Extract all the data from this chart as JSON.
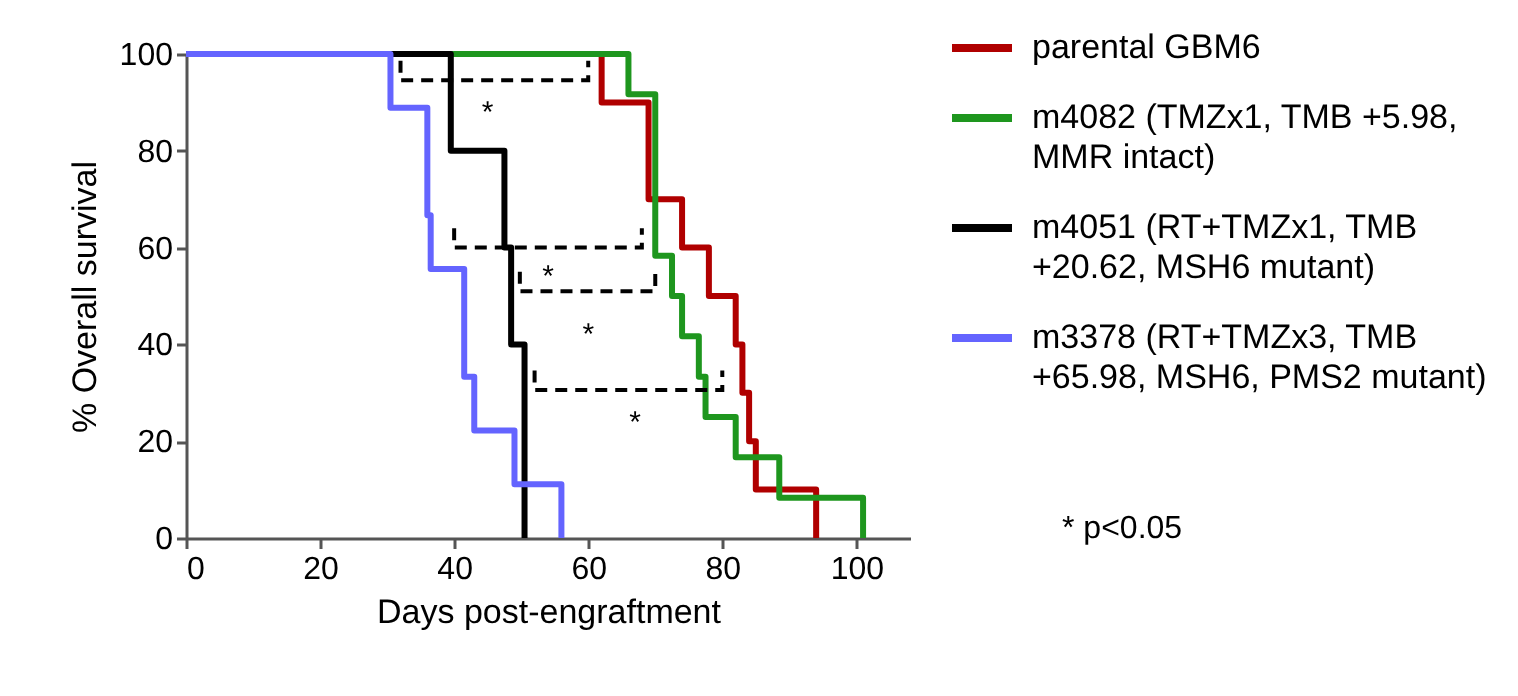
{
  "chart_data": {
    "type": "step",
    "xlabel": "Days post-engraftment",
    "ylabel": "% Overall survival",
    "xlim": [
      0,
      108
    ],
    "xticks": [
      0,
      20,
      40,
      60,
      80,
      100
    ],
    "ylim": [
      0,
      100
    ],
    "yticks": [
      0,
      20,
      40,
      60,
      80,
      100
    ],
    "legend": "right",
    "series": [
      {
        "name": "parental GBM6",
        "color": "#b00000",
        "x": [
          0,
          62,
          69,
          74,
          78,
          82,
          83,
          84,
          85,
          94
        ],
        "values": [
          100,
          90,
          70,
          60,
          50,
          40,
          30,
          20,
          10,
          0
        ]
      },
      {
        "name": "m4082 (TMZx1, TMB +5.98, MMR intact)",
        "color": "#1e961e",
        "x": [
          0,
          66,
          70,
          72.5,
          74,
          76.5,
          77.5,
          82,
          88.5,
          101
        ],
        "values": [
          100,
          91.7,
          58.3,
          50,
          41.7,
          33.3,
          25,
          16.7,
          8.3,
          0
        ]
      },
      {
        "name": "m4051 (RT+TMZx1, TMB +20.62, MSH6 mutant)",
        "color": "#000000",
        "x": [
          0,
          39.5,
          47.5,
          48.5,
          50.5
        ],
        "values": [
          100,
          80,
          60,
          40,
          0
        ]
      },
      {
        "name": "m3378 (RT+TMZx3, TMB +65.98, MSH6, PMS2 mutant)",
        "color": "#6464ff",
        "x": [
          0,
          30.5,
          36,
          36.5,
          41.5,
          43,
          49,
          56
        ],
        "values": [
          100,
          88.9,
          66.7,
          55.6,
          33.3,
          22.2,
          11.1,
          0
        ]
      }
    ],
    "annotations": [
      "*",
      "*",
      "*",
      "*",
      "* p<0.05"
    ]
  }
}
